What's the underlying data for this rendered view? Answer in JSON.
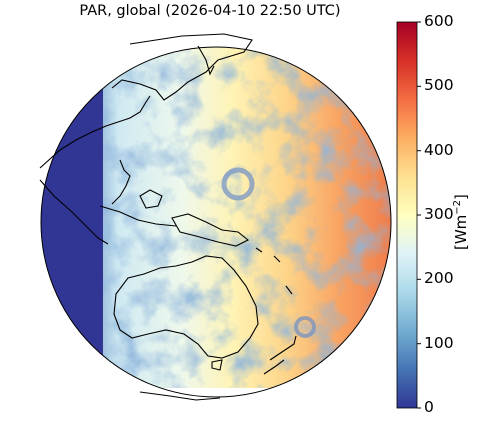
{
  "title": "PAR, global (2026-04-10 22:50 UTC)",
  "colorbar": {
    "unit_prefix": "[Wm",
    "unit_exp": "−2",
    "unit_suffix": "]",
    "min": 0,
    "max": 600,
    "ticks": [
      "0",
      "100",
      "200",
      "300",
      "400",
      "500",
      "600"
    ],
    "colormap": "RdYlBu_r"
  },
  "map": {
    "projection": "geostationary",
    "coastlines": true,
    "colors": {
      "low": "#313695",
      "mid": "#ffffbf",
      "high": "#a50026",
      "coastline": "#000000"
    }
  }
}
